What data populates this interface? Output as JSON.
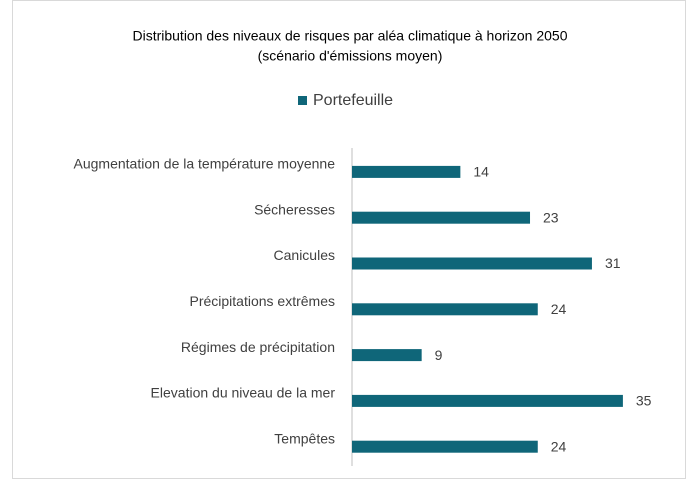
{
  "chart_data": {
    "type": "hbar",
    "title": "Distribution des niveaux de risques par aléa climatique à horizon 2050",
    "subtitle": "(scénario d'émissions moyen)",
    "categories": [
      "Augmentation de la température moyenne",
      "Sécheresses",
      "Canicules",
      "Précipitations extrêmes",
      "Régimes de précipitation",
      "Elevation du niveau de la mer",
      "Tempêtes"
    ],
    "series": [
      {
        "name": "Portefeuille",
        "color": "#0f6679",
        "values": [
          14,
          23,
          31,
          24,
          9,
          35,
          24
        ]
      }
    ],
    "legend": "top"
  }
}
